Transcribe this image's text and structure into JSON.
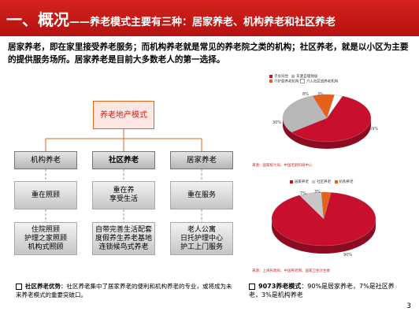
{
  "header": {
    "title_main": "一、概况",
    "title_dash": "——",
    "title_sub": "养老模式主要有三种：居家养老、机构养老和社区养老"
  },
  "intro": "居家养老，即在家里接受养老服务；而机构养老就是常见的养老院之类的机构；社区养老，就是以小区为主要的提供服务场所。居家养老是目前大多数老人的第一选择。",
  "diagram": {
    "top": "养老地产模式",
    "columns": [
      {
        "head": "机构养老",
        "bold": false,
        "cells": [
          "重在照顾",
          "住院照顾\n护理之家照顾\n机构式照顾"
        ]
      },
      {
        "head": "社区养老",
        "bold": true,
        "cells": [
          "重在养\n享受生活",
          "自带完善生活配套\n度假养生养老基地\n连锁候鸟式养老"
        ]
      },
      {
        "head": "居家养老",
        "bold": false,
        "cells": [
          "重在服务",
          "老人公寓\n日托护理中心\n护工上门服务"
        ]
      }
    ]
  },
  "chart_data": [
    {
      "type": "pie",
      "legend": [
        "子女同住",
        "夫妻自理独居",
        "介护型养老机构",
        "介入社区或养老机构"
      ],
      "labels": [
        "59%",
        "30%",
        "8%",
        "3%"
      ],
      "values": [
        59,
        30,
        8,
        3
      ],
      "colors": [
        "#c8102e",
        "#b8b8b8",
        "#e6601a",
        "#ffffff"
      ],
      "source": "来源：国家统计局、中国老龄科研中心"
    },
    {
      "type": "pie",
      "legend": [
        "居家养老",
        "社区养老",
        "机构养老"
      ],
      "labels": [
        "90%",
        "7%",
        "3%"
      ],
      "values": [
        90,
        7,
        3
      ],
      "colors": [
        "#c8102e",
        "#c8c8c8",
        "#e6601a"
      ],
      "source": "来源：上海民政局、中国养老网、国家卫生计生委"
    }
  ],
  "notes": {
    "left_title": "社区养老优势",
    "left_text": "：社区养老集中了居家养老的便利和机构养老的专业，或将成为未来养老模式的重要突破口。",
    "right_title": "9073养老模式",
    "right_text": "：90%是居家养老，7%是社区养老，3%是机构养老"
  },
  "page_number": "3"
}
